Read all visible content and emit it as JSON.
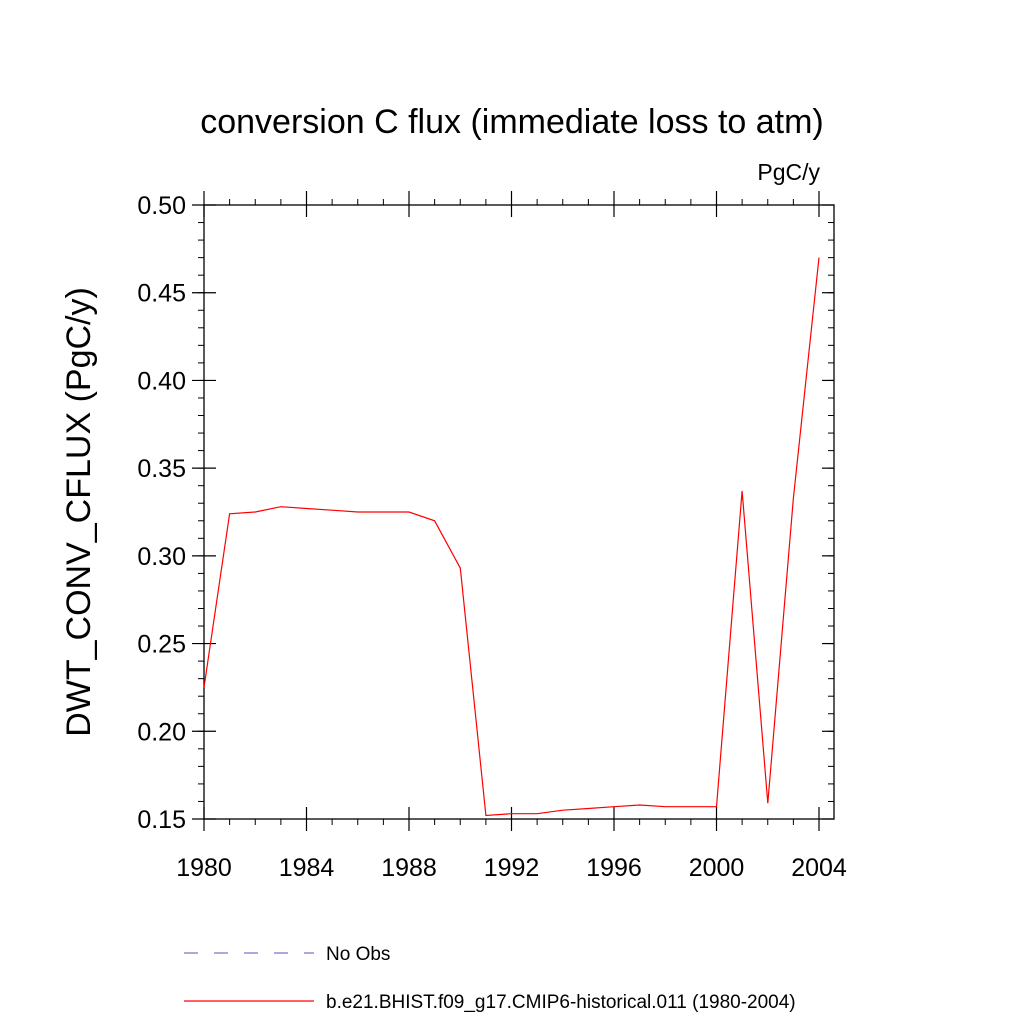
{
  "chart_data": {
    "type": "line",
    "title": "conversion C flux (immediate loss to atm)",
    "units": "PgC/y",
    "ylabel": "DWT_CONV_CFLUX  (PgC/y)",
    "xlabel": "",
    "xlim": [
      1980,
      2004
    ],
    "ylim": [
      0.15,
      0.5
    ],
    "xticks": [
      1980,
      1984,
      1988,
      1992,
      1996,
      2000,
      2004
    ],
    "xtick_labels": [
      "1980",
      "1984",
      "1988",
      "1992",
      "1996",
      "2000",
      "2004"
    ],
    "yticks": [
      0.15,
      0.2,
      0.25,
      0.3,
      0.35,
      0.4,
      0.45,
      0.5
    ],
    "ytick_labels": [
      "0.15",
      "0.20",
      "0.25",
      "0.30",
      "0.35",
      "0.40",
      "0.45",
      "0.50"
    ],
    "grid": false,
    "legend_position": "bottom",
    "series": [
      {
        "name": "b.e21.BHIST.f09_g17.CMIP6-historical.011 (1980-2004)",
        "color": "#ff0000",
        "style": "solid",
        "x": [
          1980,
          1981,
          1982,
          1983,
          1984,
          1985,
          1986,
          1987,
          1988,
          1989,
          1990,
          1991,
          1992,
          1993,
          1994,
          1995,
          1996,
          1997,
          1998,
          1999,
          2000,
          2001,
          2002,
          2003,
          2004
        ],
        "values": [
          0.225,
          0.324,
          0.325,
          0.328,
          0.327,
          0.326,
          0.325,
          0.325,
          0.325,
          0.32,
          0.293,
          0.152,
          0.153,
          0.153,
          0.155,
          0.156,
          0.157,
          0.158,
          0.157,
          0.157,
          0.157,
          0.337,
          0.159,
          0.333,
          0.47
        ]
      }
    ],
    "legend": [
      {
        "label": "No Obs",
        "color": "#7777cc",
        "style": "dashed"
      },
      {
        "label": "b.e21.BHIST.f09_g17.CMIP6-historical.011 (1980-2004)",
        "color": "#ff0000",
        "style": "solid"
      }
    ]
  }
}
